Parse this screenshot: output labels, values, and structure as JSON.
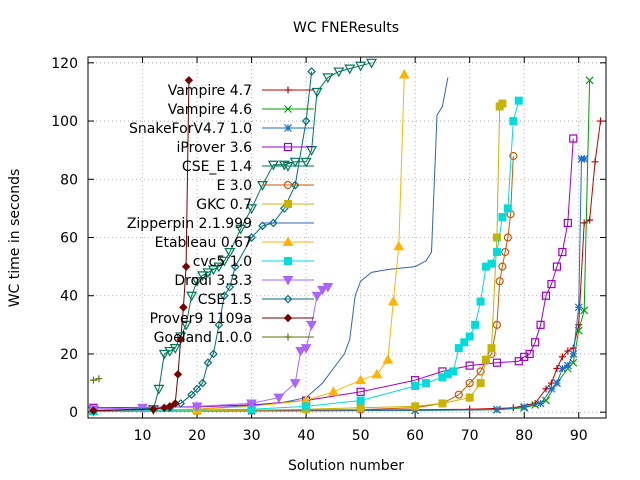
{
  "chart_data": {
    "type": "line",
    "title": "WC FNEResults",
    "xlabel": "Solution number",
    "ylabel": "WC time in seconds",
    "xlim": [
      0,
      95
    ],
    "ylim": [
      -2,
      122
    ],
    "xticks": [
      10,
      20,
      30,
      40,
      50,
      60,
      70,
      80,
      90
    ],
    "yticks": [
      0,
      20,
      40,
      60,
      80,
      100,
      120
    ],
    "grid": true,
    "legend_position": "top-right (inside plot)",
    "series": [
      {
        "name": "Vampire 4.7",
        "color": "#c00000",
        "marker": "plus",
        "points": [
          [
            1,
            0.5
          ],
          [
            20,
            0.5
          ],
          [
            40,
            0.6
          ],
          [
            60,
            0.8
          ],
          [
            70,
            1
          ],
          [
            78,
            1.5
          ],
          [
            82,
            3
          ],
          [
            84,
            8
          ],
          [
            85,
            10
          ],
          [
            86,
            15
          ],
          [
            87,
            19
          ],
          [
            88,
            21
          ],
          [
            89,
            22
          ],
          [
            90,
            30
          ],
          [
            91,
            65
          ],
          [
            92,
            66
          ],
          [
            93,
            86
          ],
          [
            94,
            100
          ]
        ]
      },
      {
        "name": "Vampire 4.6",
        "color": "#009e00",
        "marker": "x",
        "points": [
          [
            1,
            0.3
          ],
          [
            30,
            0.4
          ],
          [
            60,
            0.6
          ],
          [
            75,
            0.8
          ],
          [
            80,
            1.5
          ],
          [
            82,
            2.5
          ],
          [
            84,
            4
          ],
          [
            86,
            10
          ],
          [
            88,
            15
          ],
          [
            89,
            17
          ],
          [
            90,
            28
          ],
          [
            91,
            35
          ],
          [
            92,
            114
          ]
        ]
      },
      {
        "name": "SnakeForV4.7 1.0",
        "color": "#1e6ec8",
        "marker": "asterisk",
        "points": [
          [
            1,
            0.3
          ],
          [
            30,
            0.4
          ],
          [
            60,
            0.6
          ],
          [
            75,
            0.9
          ],
          [
            80,
            1.8
          ],
          [
            83,
            3
          ],
          [
            85,
            8
          ],
          [
            86,
            10
          ],
          [
            87,
            15
          ],
          [
            88,
            16
          ],
          [
            89,
            20
          ],
          [
            90,
            36
          ],
          [
            90.5,
            87
          ],
          [
            91,
            87
          ]
        ]
      },
      {
        "name": "iProver 3.6",
        "color": "#a000c8",
        "marker": "square",
        "points": [
          [
            1,
            1.5
          ],
          [
            20,
            1.8
          ],
          [
            30,
            2.5
          ],
          [
            40,
            4
          ],
          [
            50,
            7
          ],
          [
            60,
            11
          ],
          [
            65,
            14
          ],
          [
            70,
            16
          ],
          [
            75,
            17
          ],
          [
            79,
            17.5
          ],
          [
            80,
            19
          ],
          [
            81,
            20
          ],
          [
            82,
            24
          ],
          [
            83,
            30
          ],
          [
            84,
            40
          ],
          [
            85,
            44
          ],
          [
            86,
            50
          ],
          [
            87,
            55
          ],
          [
            88,
            65
          ],
          [
            89,
            94
          ]
        ]
      },
      {
        "name": "CSE_E 1.4",
        "color": "#00785a",
        "marker": "triangle-down",
        "points": [
          [
            1,
            0.5
          ],
          [
            12,
            1
          ],
          [
            13,
            8
          ],
          [
            14,
            20
          ],
          [
            15,
            21
          ],
          [
            16,
            22
          ],
          [
            17,
            26
          ],
          [
            18,
            30
          ],
          [
            19,
            40
          ],
          [
            20,
            45
          ],
          [
            21,
            47
          ],
          [
            22,
            48
          ],
          [
            23,
            49
          ],
          [
            24,
            50
          ],
          [
            25,
            52
          ],
          [
            26,
            55
          ],
          [
            28,
            63
          ],
          [
            30,
            70
          ],
          [
            32,
            78
          ],
          [
            34,
            85
          ],
          [
            36,
            85
          ],
          [
            38,
            86
          ],
          [
            40,
            86
          ],
          [
            41,
            90
          ],
          [
            42,
            110
          ],
          [
            44,
            115
          ],
          [
            46,
            117
          ],
          [
            48,
            118
          ],
          [
            50,
            119
          ],
          [
            52,
            120
          ]
        ]
      },
      {
        "name": "E 3.0",
        "color": "#c85a0a",
        "marker": "circle",
        "points": [
          [
            1,
            0.3
          ],
          [
            30,
            0.6
          ],
          [
            50,
            0.9
          ],
          [
            60,
            1.5
          ],
          [
            65,
            3
          ],
          [
            68,
            6
          ],
          [
            70,
            10
          ],
          [
            72,
            14
          ],
          [
            73,
            18
          ],
          [
            74,
            20
          ],
          [
            75,
            30
          ],
          [
            75.5,
            45
          ],
          [
            76,
            50
          ],
          [
            76.5,
            55
          ],
          [
            77,
            60
          ],
          [
            77.5,
            68
          ],
          [
            78,
            88
          ]
        ]
      },
      {
        "name": "GKC 0.7",
        "color": "#c8b400",
        "marker": "square-filled",
        "points": [
          [
            1,
            0.3
          ],
          [
            20,
            0.5
          ],
          [
            40,
            1
          ],
          [
            50,
            1.5
          ],
          [
            60,
            2
          ],
          [
            65,
            3
          ],
          [
            70,
            5
          ],
          [
            72,
            10
          ],
          [
            73,
            18
          ],
          [
            74,
            22
          ],
          [
            75,
            60
          ],
          [
            75.5,
            105
          ],
          [
            76,
            106
          ]
        ]
      },
      {
        "name": "Zipperpin 2.1.999",
        "color": "#3264b4",
        "marker": "none",
        "points": [
          [
            1,
            0.5
          ],
          [
            20,
            1
          ],
          [
            35,
            3
          ],
          [
            40,
            5
          ],
          [
            43,
            10
          ],
          [
            45,
            15
          ],
          [
            47,
            20
          ],
          [
            48,
            25
          ],
          [
            49,
            40
          ],
          [
            50,
            45
          ],
          [
            52,
            48
          ],
          [
            55,
            49
          ],
          [
            60,
            50
          ],
          [
            62,
            52
          ],
          [
            63,
            55
          ],
          [
            64,
            102
          ],
          [
            65,
            105
          ],
          [
            66,
            115
          ]
        ]
      },
      {
        "name": "Etableau 0.67",
        "color": "#ffb400",
        "marker": "triangle",
        "points": [
          [
            1,
            0.5
          ],
          [
            20,
            1
          ],
          [
            30,
            2
          ],
          [
            40,
            4
          ],
          [
            45,
            7
          ],
          [
            50,
            11
          ],
          [
            53,
            13
          ],
          [
            55,
            18
          ],
          [
            56,
            38
          ],
          [
            57,
            57
          ],
          [
            58,
            116
          ]
        ]
      },
      {
        "name": "cvc5 1.0",
        "color": "#00dcdc",
        "marker": "square-filled",
        "points": [
          [
            1,
            0.3
          ],
          [
            30,
            1
          ],
          [
            40,
            2
          ],
          [
            50,
            4
          ],
          [
            60,
            9
          ],
          [
            62,
            10
          ],
          [
            65,
            12
          ],
          [
            66,
            13
          ],
          [
            67,
            14
          ],
          [
            68,
            22
          ],
          [
            69,
            24
          ],
          [
            70,
            26
          ],
          [
            71,
            30
          ],
          [
            72,
            38
          ],
          [
            73,
            50
          ],
          [
            74,
            51
          ],
          [
            75,
            55
          ],
          [
            76,
            67
          ],
          [
            77,
            70
          ],
          [
            78,
            100
          ],
          [
            79,
            107
          ]
        ]
      },
      {
        "name": "Drodi 3.3.3",
        "color": "#aa64ff",
        "marker": "triangle-down-filled",
        "points": [
          [
            1,
            1
          ],
          [
            10,
            1.5
          ],
          [
            20,
            2
          ],
          [
            30,
            3
          ],
          [
            35,
            5
          ],
          [
            38,
            10
          ],
          [
            39,
            21
          ],
          [
            40,
            22
          ],
          [
            41,
            30
          ],
          [
            42,
            40
          ],
          [
            43,
            42
          ],
          [
            44,
            43
          ]
        ]
      },
      {
        "name": "CSE 1.5",
        "color": "#006e78",
        "marker": "diamond",
        "points": [
          [
            1,
            0.5
          ],
          [
            15,
            1.5
          ],
          [
            17,
            3
          ],
          [
            19,
            6
          ],
          [
            20,
            8
          ],
          [
            21,
            10
          ],
          [
            22,
            17
          ],
          [
            23,
            20
          ],
          [
            24,
            30
          ],
          [
            25,
            40
          ],
          [
            26,
            43
          ],
          [
            27,
            50
          ],
          [
            30,
            60
          ],
          [
            32,
            64
          ],
          [
            34,
            65
          ],
          [
            36,
            70
          ],
          [
            38,
            78
          ],
          [
            40,
            100
          ],
          [
            41,
            117
          ]
        ]
      },
      {
        "name": "Prover9 1109a",
        "color": "#780000",
        "marker": "diamond-filled",
        "points": [
          [
            1,
            0.5
          ],
          [
            12,
            1
          ],
          [
            14,
            1.5
          ],
          [
            15,
            2
          ],
          [
            16,
            3
          ],
          [
            16.5,
            13
          ],
          [
            17,
            25
          ],
          [
            17.5,
            36
          ],
          [
            18,
            50
          ],
          [
            18.5,
            114
          ]
        ]
      },
      {
        "name": "Goeland 1.0.0",
        "color": "#5a7800",
        "marker": "plus",
        "points": [
          [
            1,
            11
          ],
          [
            2,
            11.5
          ]
        ]
      }
    ]
  }
}
